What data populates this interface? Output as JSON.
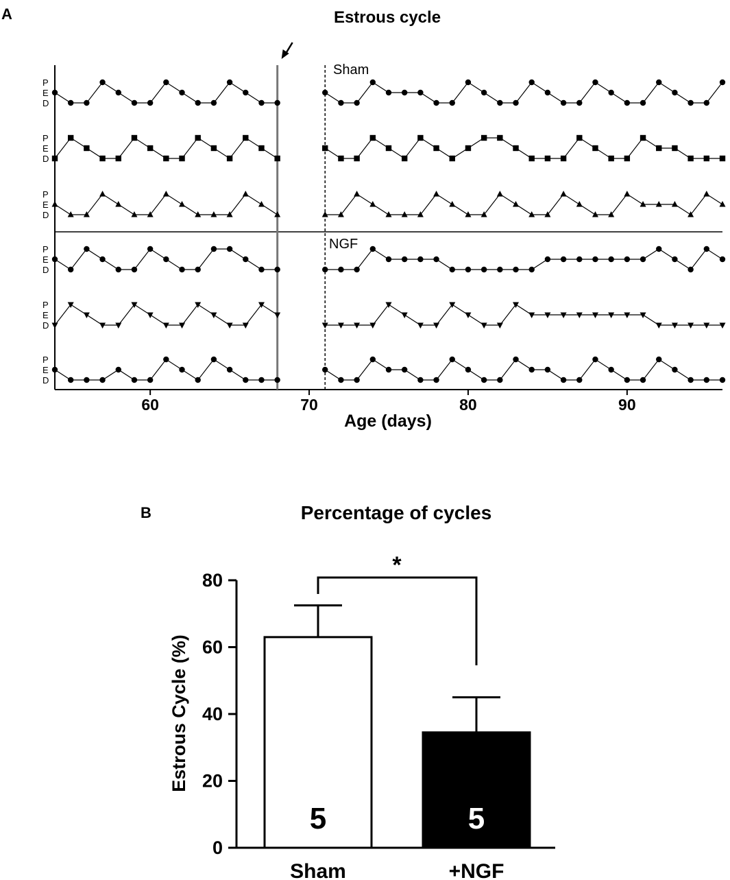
{
  "chart_data": [
    {
      "panel": "A",
      "type": "line",
      "title": "Estrous cycle",
      "xlabel": "Age (days)",
      "xlim": [
        54,
        96
      ],
      "x_ticks": [
        60,
        70,
        80,
        90
      ],
      "states": [
        "P",
        "E",
        "D"
      ],
      "state_values": {
        "P": 2,
        "E": 1,
        "D": 0
      },
      "arrow_day": 68,
      "dashed_day": 71,
      "groups": [
        {
          "label": "Sham",
          "series": [
            {
              "marker": "circle",
              "pre": {
                "x": [
                  54,
                  55,
                  56,
                  57,
                  58,
                  59,
                  60,
                  61,
                  62,
                  63,
                  64,
                  65,
                  66,
                  67,
                  68
                ],
                "y": [
                  1,
                  0,
                  0,
                  2,
                  1,
                  0,
                  0,
                  2,
                  1,
                  0,
                  0,
                  2,
                  1,
                  0,
                  0
                ]
              },
              "post": {
                "x": [
                  71,
                  72,
                  73,
                  74,
                  75,
                  76,
                  77,
                  78,
                  79,
                  80,
                  81,
                  82,
                  83,
                  84,
                  85,
                  86,
                  87,
                  88,
                  89,
                  90,
                  91,
                  92,
                  93,
                  94,
                  95,
                  96
                ],
                "y": [
                  1,
                  0,
                  0,
                  2,
                  1,
                  1,
                  1,
                  0,
                  0,
                  2,
                  1,
                  0,
                  0,
                  2,
                  1,
                  0,
                  0,
                  2,
                  1,
                  0,
                  0,
                  2,
                  1,
                  0,
                  0,
                  2
                ]
              }
            },
            {
              "marker": "square",
              "pre": {
                "x": [
                  54,
                  55,
                  56,
                  57,
                  58,
                  59,
                  60,
                  61,
                  62,
                  63,
                  64,
                  65,
                  66,
                  67,
                  68
                ],
                "y": [
                  0,
                  2,
                  1,
                  0,
                  0,
                  2,
                  1,
                  0,
                  0,
                  2,
                  1,
                  0,
                  2,
                  1,
                  0
                ]
              },
              "post": {
                "x": [
                  71,
                  72,
                  73,
                  74,
                  75,
                  76,
                  77,
                  78,
                  79,
                  80,
                  81,
                  82,
                  83,
                  84,
                  85,
                  86,
                  87,
                  88,
                  89,
                  90,
                  91,
                  92,
                  93,
                  94,
                  95,
                  96
                ],
                "y": [
                  1,
                  0,
                  0,
                  2,
                  1,
                  0,
                  2,
                  1,
                  0,
                  1,
                  2,
                  2,
                  1,
                  0,
                  0,
                  0,
                  2,
                  1,
                  0,
                  0,
                  2,
                  1,
                  1,
                  0,
                  0,
                  0
                ]
              }
            },
            {
              "marker": "triangle-up",
              "pre": {
                "x": [
                  54,
                  55,
                  56,
                  57,
                  58,
                  59,
                  60,
                  61,
                  62,
                  63,
                  64,
                  65,
                  66,
                  67,
                  68
                ],
                "y": [
                  1,
                  0,
                  0,
                  2,
                  1,
                  0,
                  0,
                  2,
                  1,
                  0,
                  0,
                  0,
                  2,
                  1,
                  0
                ]
              },
              "post": {
                "x": [
                  71,
                  72,
                  73,
                  74,
                  75,
                  76,
                  77,
                  78,
                  79,
                  80,
                  81,
                  82,
                  83,
                  84,
                  85,
                  86,
                  87,
                  88,
                  89,
                  90,
                  91,
                  92,
                  93,
                  94,
                  95,
                  96
                ],
                "y": [
                  0,
                  0,
                  2,
                  1,
                  0,
                  0,
                  0,
                  2,
                  1,
                  0,
                  0,
                  2,
                  1,
                  0,
                  0,
                  2,
                  1,
                  0,
                  0,
                  2,
                  1,
                  1,
                  1,
                  0,
                  2,
                  1
                ]
              }
            }
          ]
        },
        {
          "label": "NGF",
          "series": [
            {
              "marker": "circle",
              "pre": {
                "x": [
                  54,
                  55,
                  56,
                  57,
                  58,
                  59,
                  60,
                  61,
                  62,
                  63,
                  64,
                  65,
                  66,
                  67,
                  68
                ],
                "y": [
                  1,
                  0,
                  2,
                  1,
                  0,
                  0,
                  2,
                  1,
                  0,
                  0,
                  2,
                  2,
                  1,
                  0,
                  0
                ]
              },
              "post": {
                "x": [
                  71,
                  72,
                  73,
                  74,
                  75,
                  76,
                  77,
                  78,
                  79,
                  80,
                  81,
                  82,
                  83,
                  84,
                  85,
                  86,
                  87,
                  88,
                  89,
                  90,
                  91,
                  92,
                  93,
                  94,
                  95,
                  96
                ],
                "y": [
                  0,
                  0,
                  0,
                  2,
                  1,
                  1,
                  1,
                  1,
                  0,
                  0,
                  0,
                  0,
                  0,
                  0,
                  1,
                  1,
                  1,
                  1,
                  1,
                  1,
                  1,
                  2,
                  1,
                  0,
                  2,
                  1
                ]
              }
            },
            {
              "marker": "triangle-down",
              "pre": {
                "x": [
                  54,
                  55,
                  56,
                  57,
                  58,
                  59,
                  60,
                  61,
                  62,
                  63,
                  64,
                  65,
                  66,
                  67,
                  68
                ],
                "y": [
                  0,
                  2,
                  1,
                  0,
                  0,
                  2,
                  1,
                  0,
                  0,
                  2,
                  1,
                  0,
                  0,
                  2,
                  1
                ]
              },
              "post": {
                "x": [
                  71,
                  72,
                  73,
                  74,
                  75,
                  76,
                  77,
                  78,
                  79,
                  80,
                  81,
                  82,
                  83,
                  84,
                  85,
                  86,
                  87,
                  88,
                  89,
                  90,
                  91,
                  92,
                  93,
                  94,
                  95,
                  96
                ],
                "y": [
                  0,
                  0,
                  0,
                  0,
                  2,
                  1,
                  0,
                  0,
                  2,
                  1,
                  0,
                  0,
                  2,
                  1,
                  1,
                  1,
                  1,
                  1,
                  1,
                  1,
                  1,
                  0,
                  0,
                  0,
                  0,
                  0
                ]
              }
            },
            {
              "marker": "circle",
              "pre": {
                "x": [
                  54,
                  55,
                  56,
                  57,
                  58,
                  59,
                  60,
                  61,
                  62,
                  63,
                  64,
                  65,
                  66,
                  67,
                  68
                ],
                "y": [
                  1,
                  0,
                  0,
                  0,
                  1,
                  0,
                  0,
                  2,
                  1,
                  0,
                  2,
                  1,
                  0,
                  0,
                  0
                ]
              },
              "post": {
                "x": [
                  71,
                  72,
                  73,
                  74,
                  75,
                  76,
                  77,
                  78,
                  79,
                  80,
                  81,
                  82,
                  83,
                  84,
                  85,
                  86,
                  87,
                  88,
                  89,
                  90,
                  91,
                  92,
                  93,
                  94,
                  95,
                  96
                ],
                "y": [
                  1,
                  0,
                  0,
                  2,
                  1,
                  1,
                  0,
                  0,
                  2,
                  1,
                  0,
                  0,
                  2,
                  1,
                  1,
                  0,
                  0,
                  2,
                  1,
                  0,
                  0,
                  2,
                  1,
                  0,
                  0,
                  0
                ]
              }
            }
          ]
        }
      ]
    },
    {
      "panel": "B",
      "type": "bar",
      "title": "Percentage of cycles",
      "ylabel": "Estrous Cycle (%)",
      "ylim": [
        0,
        80
      ],
      "y_ticks": [
        0,
        20,
        40,
        60,
        80
      ],
      "categories": [
        "Sham",
        "+NGF"
      ],
      "values": [
        63,
        34.5
      ],
      "errors": [
        9.5,
        10.5
      ],
      "n_labels": [
        "5",
        "5"
      ],
      "bar_colors": [
        "#ffffff",
        "#000000"
      ],
      "n_label_colors": [
        "#000000",
        "#ffffff"
      ],
      "significance": "*"
    }
  ]
}
